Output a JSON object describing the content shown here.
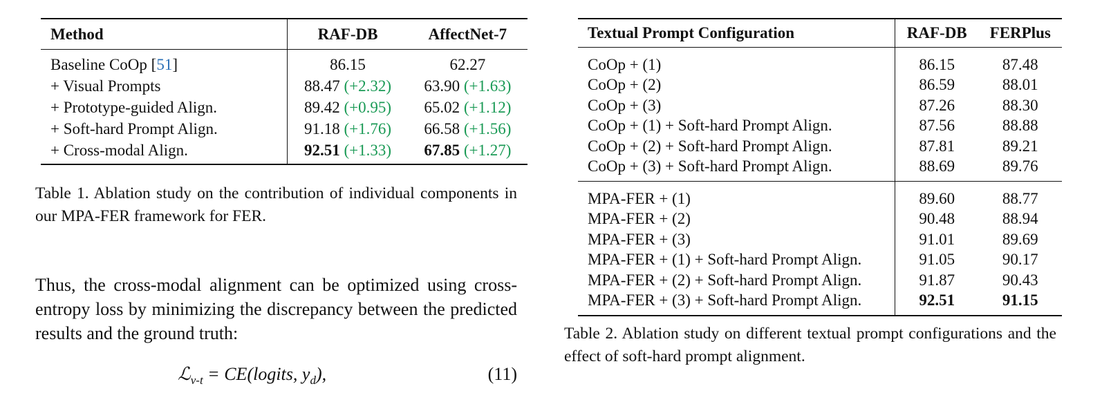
{
  "table1": {
    "headers": [
      "Method",
      "RAF-DB",
      "AffectNet-7"
    ],
    "rows": [
      {
        "method": "Baseline CoOp [",
        "ref": "51",
        "method_end": "]",
        "indent": 0,
        "v1": "86.15",
        "g1": "",
        "v2": "62.27",
        "g2": "",
        "bold": false
      },
      {
        "method": "+ Visual Prompts",
        "ref": "",
        "method_end": "",
        "indent": 0,
        "v1": "88.47",
        "g1": "(+2.32)",
        "v2": "63.90",
        "g2": "(+1.63)",
        "bold": false
      },
      {
        "method": "+ Prototype-guided Align.",
        "ref": "",
        "method_end": "",
        "indent": 1,
        "v1": "89.42",
        "g1": "(+0.95)",
        "v2": "65.02",
        "g2": "(+1.12)",
        "bold": false
      },
      {
        "method": "+ Soft-hard Prompt Align.",
        "ref": "",
        "method_end": "",
        "indent": 2,
        "v1": "91.18",
        "g1": "(+1.76)",
        "v2": "66.58",
        "g2": "(+1.56)",
        "bold": false
      },
      {
        "method": "+ Cross-modal Align.",
        "ref": "",
        "method_end": "",
        "indent": 3,
        "v1": "92.51",
        "g1": "(+1.33)",
        "v2": "67.85",
        "g2": "(+1.27)",
        "bold": true
      }
    ],
    "caption": "Table 1. Ablation study on the contribution of individual components in our MPA-FER framework for FER."
  },
  "paragraph": "Thus, the cross-modal alignment can be optimized using cross-entropy loss by minimizing the discrepancy between the predicted results and the ground truth:",
  "equation": {
    "lhs": "ℒ",
    "lhs_sub": "v-t",
    "rhs": "= CE(logits, y",
    "rhs_sub": "d",
    "rhs_end": "),",
    "number": "(11)"
  },
  "table2": {
    "headers": [
      "Textual Prompt Configuration",
      "RAF-DB",
      "FERPlus"
    ],
    "groups": [
      [
        {
          "cfg": "CoOp + (1)",
          "v1": "86.15",
          "v2": "87.48",
          "bold": false
        },
        {
          "cfg": "CoOp + (2)",
          "v1": "86.59",
          "v2": "88.01",
          "bold": false
        },
        {
          "cfg": "CoOp + (3)",
          "v1": "87.26",
          "v2": "88.30",
          "bold": false
        },
        {
          "cfg": "CoOp + (1) + Soft-hard Prompt Align.",
          "v1": "87.56",
          "v2": "88.88",
          "bold": false
        },
        {
          "cfg": "CoOp + (2) + Soft-hard Prompt Align.",
          "v1": "87.81",
          "v2": "89.21",
          "bold": false
        },
        {
          "cfg": "CoOp + (3) + Soft-hard Prompt Align.",
          "v1": "88.69",
          "v2": "89.76",
          "bold": false
        }
      ],
      [
        {
          "cfg": "MPA-FER + (1)",
          "v1": "89.60",
          "v2": "88.77",
          "bold": false
        },
        {
          "cfg": "MPA-FER + (2)",
          "v1": "90.48",
          "v2": "88.94",
          "bold": false
        },
        {
          "cfg": "MPA-FER + (3)",
          "v1": "91.01",
          "v2": "89.69",
          "bold": false
        },
        {
          "cfg": "MPA-FER + (1) + Soft-hard Prompt Align.",
          "v1": "91.05",
          "v2": "90.17",
          "bold": false
        },
        {
          "cfg": "MPA-FER + (2) + Soft-hard Prompt Align.",
          "v1": "91.87",
          "v2": "90.43",
          "bold": false
        },
        {
          "cfg": "MPA-FER + (3) + Soft-hard Prompt Align.",
          "v1": "92.51",
          "v2": "91.15",
          "bold": true
        }
      ]
    ],
    "caption": "Table 2. Ablation study on different textual prompt configurations and the effect of soft-hard prompt alignment."
  }
}
